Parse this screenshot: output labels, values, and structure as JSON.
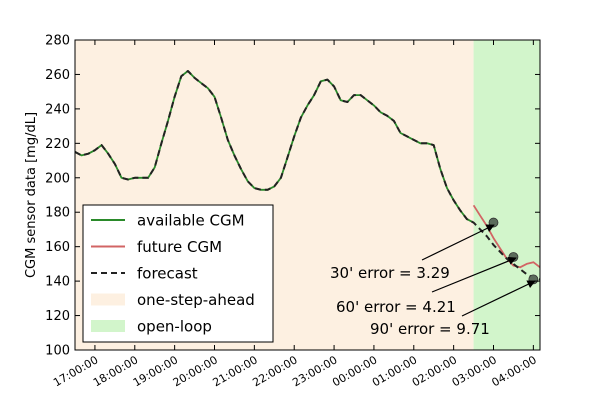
{
  "chart_data": {
    "type": "line",
    "ylabel": "CGM sensor data [mg/dL]",
    "xlabel": "",
    "ylim": [
      100,
      280
    ],
    "yticks": [
      100,
      120,
      140,
      160,
      180,
      200,
      220,
      240,
      260,
      280
    ],
    "xlim": [
      "16:30",
      "04:10"
    ],
    "xticks": [
      "17:00:00",
      "18:00:00",
      "19:00:00",
      "20:00:00",
      "21:00:00",
      "22:00:00",
      "23:00:00",
      "00:00:00",
      "01:00:00",
      "02:00:00",
      "03:00:00",
      "04:00:00"
    ],
    "grid": false,
    "legend_position": "lower-left",
    "regions": [
      {
        "name": "one-step-ahead",
        "x_start": "16:30",
        "x_end": "02:30",
        "color": "#fdf0e1"
      },
      {
        "name": "open-loop",
        "x_start": "02:30",
        "x_end": "04:10",
        "color": "#d2f5cb"
      }
    ],
    "series": [
      {
        "name": "available CGM",
        "color": "#2a8a2a",
        "style": "solid",
        "x": [
          "16:30",
          "16:40",
          "16:50",
          "17:00",
          "17:10",
          "17:20",
          "17:30",
          "17:40",
          "17:50",
          "18:00",
          "18:10",
          "18:20",
          "18:30",
          "18:40",
          "18:50",
          "19:00",
          "19:10",
          "19:20",
          "19:30",
          "19:40",
          "19:50",
          "20:00",
          "20:10",
          "20:20",
          "20:30",
          "20:40",
          "20:50",
          "21:00",
          "21:10",
          "21:20",
          "21:30",
          "21:40",
          "21:50",
          "22:00",
          "22:10",
          "22:20",
          "22:30",
          "22:40",
          "22:50",
          "23:00",
          "23:10",
          "23:20",
          "23:30",
          "23:40",
          "23:50",
          "00:00",
          "00:10",
          "00:20",
          "00:30",
          "00:40",
          "00:50",
          "01:00",
          "01:10",
          "01:20",
          "01:30",
          "01:40",
          "01:50",
          "02:00",
          "02:10",
          "02:20",
          "02:30"
        ],
        "y": [
          215,
          213,
          214,
          216,
          219,
          214,
          208,
          200,
          199,
          200,
          200,
          200,
          206,
          220,
          233,
          247,
          259,
          262,
          258,
          255,
          252,
          247,
          235,
          222,
          213,
          205,
          198,
          194,
          193,
          193,
          195,
          200,
          212,
          224,
          235,
          242,
          248,
          256,
          257,
          253,
          245,
          244,
          248,
          248,
          245,
          242,
          238,
          236,
          233,
          226,
          224,
          222,
          220,
          220,
          219,
          205,
          194,
          187,
          181,
          176,
          174
        ]
      },
      {
        "name": "future CGM",
        "color": "#d26464",
        "style": "solid",
        "x": [
          "02:30",
          "02:40",
          "02:50",
          "03:00",
          "03:10",
          "03:20",
          "03:30",
          "03:40",
          "03:50",
          "04:00",
          "04:10"
        ],
        "y": [
          184,
          178,
          172,
          165,
          159,
          153,
          149,
          148,
          150,
          151,
          148
        ]
      },
      {
        "name": "forecast",
        "color": "#222222",
        "style": "dashed",
        "x": [
          "16:30",
          "16:40",
          "16:50",
          "17:00",
          "17:10",
          "17:20",
          "17:30",
          "17:40",
          "17:50",
          "18:00",
          "18:10",
          "18:20",
          "18:30",
          "18:40",
          "18:50",
          "19:00",
          "19:10",
          "19:20",
          "19:30",
          "19:40",
          "19:50",
          "20:00",
          "20:10",
          "20:20",
          "20:30",
          "20:40",
          "20:50",
          "21:00",
          "21:10",
          "21:20",
          "21:30",
          "21:40",
          "21:50",
          "22:00",
          "22:10",
          "22:20",
          "22:30",
          "22:40",
          "22:50",
          "23:00",
          "23:10",
          "23:20",
          "23:30",
          "23:40",
          "23:50",
          "00:00",
          "00:10",
          "00:20",
          "00:30",
          "00:40",
          "00:50",
          "01:00",
          "01:10",
          "01:20",
          "01:30",
          "01:40",
          "01:50",
          "02:00",
          "02:10",
          "02:20",
          "02:30",
          "02:40",
          "02:50",
          "03:00",
          "03:10",
          "03:20",
          "03:30",
          "03:40",
          "03:50",
          "04:00",
          "04:10"
        ],
        "y": [
          215,
          213,
          214,
          216,
          219,
          214,
          208,
          200,
          199,
          200,
          200,
          200,
          206,
          220,
          233,
          247,
          259,
          262,
          258,
          255,
          252,
          247,
          235,
          222,
          213,
          205,
          198,
          194,
          193,
          193,
          195,
          200,
          212,
          224,
          235,
          242,
          248,
          256,
          257,
          253,
          245,
          244,
          248,
          248,
          245,
          242,
          238,
          236,
          233,
          226,
          224,
          222,
          220,
          220,
          219,
          205,
          194,
          187,
          181,
          176,
          174,
          170,
          166,
          161,
          157,
          153,
          150,
          147,
          144,
          142,
          141
        ]
      }
    ],
    "markers": [
      {
        "x": "03:00",
        "y": 174,
        "label": "30' error = 3.29",
        "label_x": "22:50",
        "label_y": 143
      },
      {
        "x": "03:30",
        "y": 154,
        "label": "60' error = 4.21",
        "label_x": "22:55",
        "label_y": 120
      },
      {
        "x": "04:00",
        "y": 141,
        "label": "90' error = 9.71",
        "label_x": "23:35",
        "label_y": 109
      }
    ],
    "marker_color": "#5b6b5b"
  }
}
